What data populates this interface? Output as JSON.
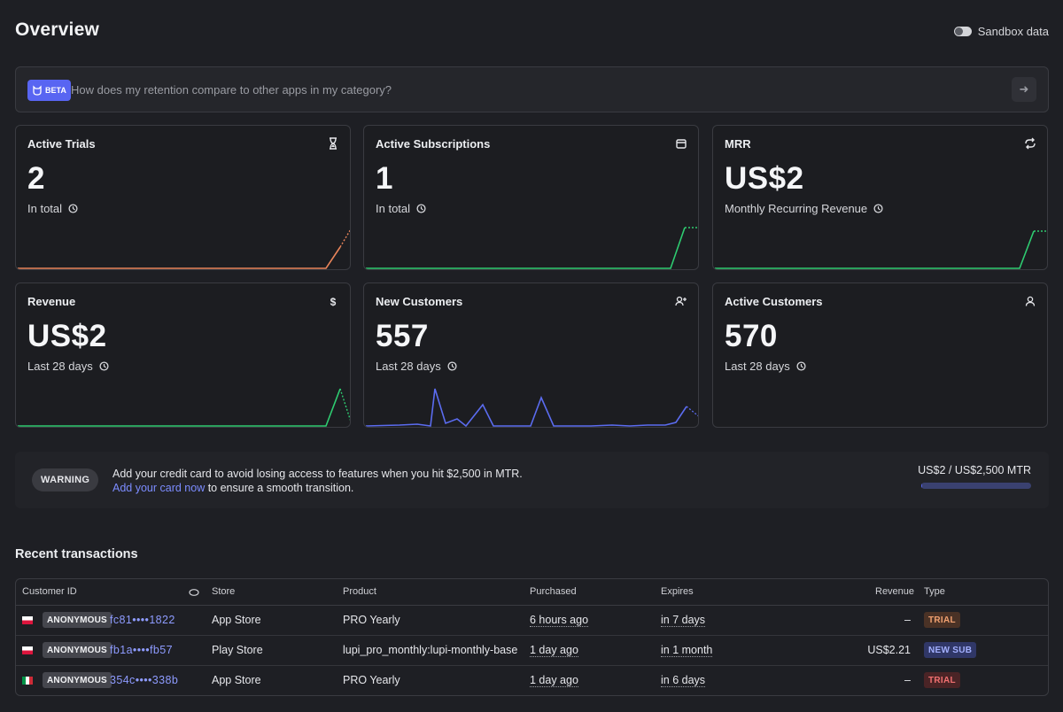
{
  "header": {
    "title": "Overview",
    "sandbox_label": "Sandbox data",
    "sandbox_enabled": false
  },
  "ask": {
    "badge": "BETA",
    "placeholder": "How does my retention compare to other apps in my category?",
    "arrow": "➜"
  },
  "cards": [
    {
      "title": "Active Trials",
      "value": "2",
      "sub": "In total",
      "icon": "hourglass-icon",
      "color": "#e8845a"
    },
    {
      "title": "Active Subscriptions",
      "value": "1",
      "sub": "In total",
      "icon": "calendar-icon",
      "color": "#2ecc71"
    },
    {
      "title": "MRR",
      "value": "US$2",
      "sub": "Monthly Recurring Revenue",
      "icon": "refresh-icon",
      "color": "#2ecc71"
    },
    {
      "title": "Revenue",
      "value": "US$2",
      "sub": "Last 28 days",
      "icon": "dollar-icon",
      "color": "#2ecc71"
    },
    {
      "title": "New Customers",
      "value": "557",
      "sub": "Last 28 days",
      "icon": "user-plus-icon",
      "color": "#5b6cf0"
    },
    {
      "title": "Active Customers",
      "value": "570",
      "sub": "Last 28 days",
      "icon": "user-icon",
      "color": "#2ecc71"
    }
  ],
  "warning": {
    "badge": "WARNING",
    "line1": "Add your credit card to avoid losing access to features when you hit $2,500 in MTR.",
    "link": "Add your card now",
    "line2_rest": " to ensure a smooth transition.",
    "usage_label": "US$2 / US$2,500 MTR",
    "usage_fraction": 0.0008
  },
  "transactions": {
    "title": "Recent transactions",
    "columns": {
      "customer_id": "Customer ID",
      "store": "Store",
      "product": "Product",
      "purchased": "Purchased",
      "expires": "Expires",
      "revenue": "Revenue",
      "type": "Type"
    },
    "rows": [
      {
        "flag": "pl",
        "badge": "ANONYMOUS",
        "id": "fc81••••1822",
        "store": "App Store",
        "product": "PRO Yearly",
        "purchased": "6 hours ago",
        "expires": "in 7 days",
        "revenue": "–",
        "type": "TRIAL",
        "type_style": "trial"
      },
      {
        "flag": "pl",
        "badge": "ANONYMOUS",
        "id": "fb1a••••fb57",
        "store": "Play Store",
        "product": "lupi_pro_monthly:lupi-monthly-base",
        "purchased": "1 day ago",
        "expires": "in 1 month",
        "revenue": "US$2.21",
        "type": "NEW SUB",
        "type_style": "newsub"
      },
      {
        "flag": "it",
        "badge": "ANONYMOUS",
        "id": "354c••••338b",
        "store": "App Store",
        "product": "PRO Yearly",
        "purchased": "1 day ago",
        "expires": "in 6 days",
        "revenue": "–",
        "type": "TRIAL",
        "type_style": "trial-red"
      }
    ]
  }
}
